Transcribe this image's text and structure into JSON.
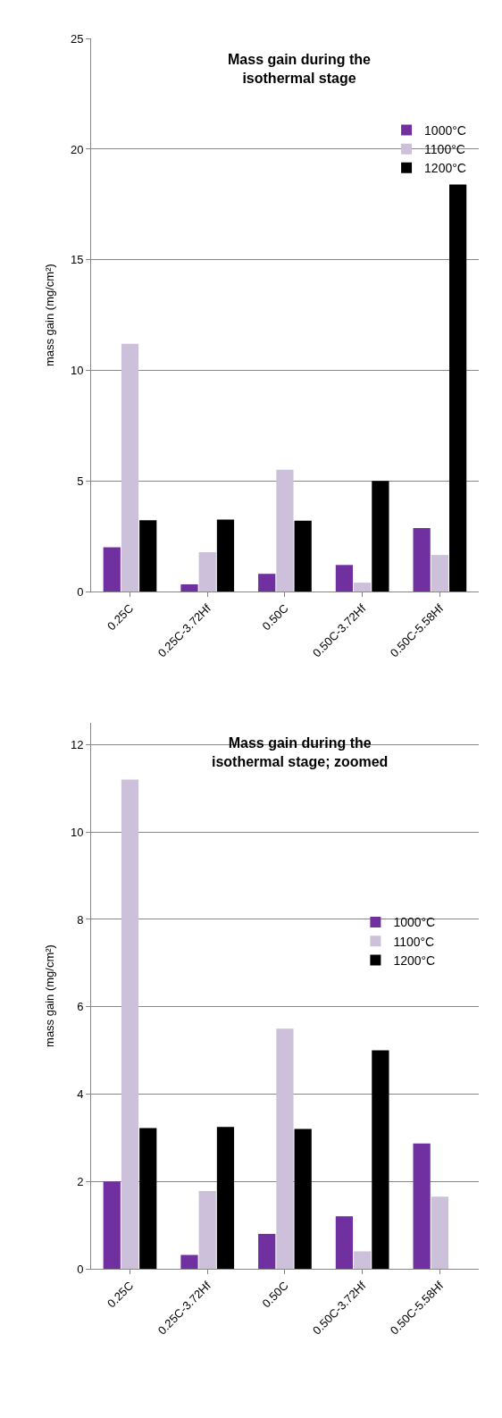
{
  "chart_data": [
    {
      "type": "bar",
      "title": "Mass gain during the isothermal stage",
      "ylabel": "mass gain (mg/cm²)",
      "categories": [
        "0.25C",
        "0.25C-3.72Hf",
        "0.50C",
        "0.50C-3.72Hf",
        "0.50C-5.58Hf"
      ],
      "series": [
        {
          "name": "1000°C",
          "color": "#7030a0",
          "values": [
            2.0,
            0.32,
            0.8,
            1.2,
            2.87
          ]
        },
        {
          "name": "1100°C",
          "color": "#ccc0da",
          "values": [
            11.2,
            1.78,
            5.5,
            0.4,
            1.65
          ]
        },
        {
          "name": "1200°C",
          "color": "#000000",
          "values": [
            3.22,
            3.25,
            3.2,
            5.0,
            18.4
          ]
        }
      ],
      "ylim": [
        0,
        25
      ],
      "yticks": [
        0,
        5,
        10,
        15,
        20,
        25
      ],
      "grid": "y",
      "legend": "top right"
    },
    {
      "type": "bar",
      "title": "Mass gain during the isothermal stage; zoomed",
      "ylabel": "mass gain (mg/cm²)",
      "categories": [
        "0.25C",
        "0.25C-3.72Hf",
        "0.50C",
        "0.50C-3.72Hf",
        "0.50C-5.58Hf"
      ],
      "series": [
        {
          "name": "1000°C",
          "color": "#7030a0",
          "values": [
            2.0,
            0.32,
            0.8,
            1.2,
            2.87
          ]
        },
        {
          "name": "1100°C",
          "color": "#ccc0da",
          "values": [
            11.2,
            1.78,
            5.5,
            0.4,
            1.65
          ]
        },
        {
          "name": "1200°C",
          "color": "#000000",
          "values": [
            3.22,
            3.25,
            3.2,
            5.0,
            null
          ]
        }
      ],
      "ylim": [
        0,
        12.5
      ],
      "yticks": [
        0,
        2,
        4,
        6,
        8,
        10,
        12
      ],
      "grid": "y",
      "legend": "right"
    }
  ]
}
